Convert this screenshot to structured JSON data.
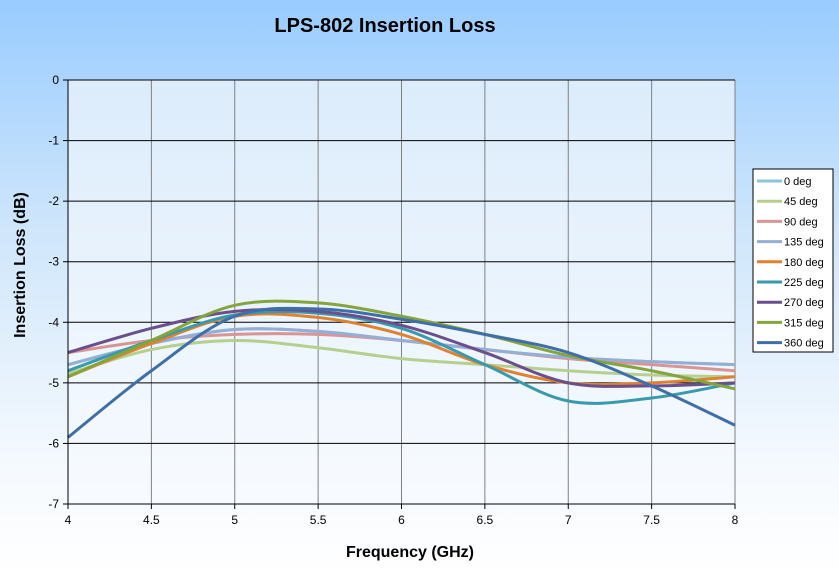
{
  "chart_data": {
    "type": "line",
    "title": "LPS-802  Insertion Loss",
    "xlabel": "Frequency  (GHz)",
    "ylabel": "Insertion Loss (dB)",
    "xlim": [
      4,
      8
    ],
    "ylim": [
      -7,
      0
    ],
    "xticks": [
      "4",
      "4.5",
      "5",
      "5.5",
      "6",
      "6.5",
      "7",
      "7.5",
      "8"
    ],
    "yticks": [
      "0",
      "-1",
      "-2",
      "-3",
      "-4",
      "-5",
      "-6",
      "-7"
    ],
    "grid": true,
    "legend_position": "right",
    "x": [
      4,
      4.5,
      5,
      5.5,
      6,
      6.5,
      7,
      7.5,
      8
    ],
    "series": [
      {
        "name": "0 deg",
        "color": "#8fc3da",
        "values": [
          -4.7,
          -4.35,
          -4.12,
          -4.15,
          -4.3,
          -4.45,
          -4.58,
          -4.65,
          -4.7
        ]
      },
      {
        "name": "45 deg",
        "color": "#b5cf8f",
        "values": [
          -4.85,
          -4.45,
          -4.3,
          -4.42,
          -4.6,
          -4.7,
          -4.8,
          -4.87,
          -4.9
        ]
      },
      {
        "name": "90 deg",
        "color": "#d99594",
        "values": [
          -4.5,
          -4.3,
          -4.2,
          -4.2,
          -4.3,
          -4.45,
          -4.6,
          -4.7,
          -4.8
        ]
      },
      {
        "name": "135 deg",
        "color": "#95aed6",
        "values": [
          -4.7,
          -4.35,
          -4.12,
          -4.15,
          -4.3,
          -4.45,
          -4.58,
          -4.65,
          -4.7
        ]
      },
      {
        "name": "180 deg",
        "color": "#e0812f",
        "values": [
          -4.9,
          -4.35,
          -3.9,
          -3.92,
          -4.2,
          -4.7,
          -5.0,
          -5.0,
          -4.9
        ]
      },
      {
        "name": "225 deg",
        "color": "#3a9aad",
        "values": [
          -4.8,
          -4.3,
          -3.88,
          -3.85,
          -4.1,
          -4.7,
          -5.3,
          -5.25,
          -5.0
        ]
      },
      {
        "name": "270 deg",
        "color": "#6b4f8c",
        "values": [
          -4.5,
          -4.1,
          -3.82,
          -3.82,
          -4.05,
          -4.5,
          -5.0,
          -5.05,
          -5.0
        ]
      },
      {
        "name": "315 deg",
        "color": "#84a43d",
        "values": [
          -4.9,
          -4.3,
          -3.72,
          -3.68,
          -3.9,
          -4.2,
          -4.55,
          -4.8,
          -5.1
        ]
      },
      {
        "name": "360 deg",
        "color": "#3f6fa8",
        "values": [
          -5.9,
          -4.8,
          -3.9,
          -3.78,
          -3.95,
          -4.2,
          -4.5,
          -5.05,
          -5.7
        ]
      }
    ]
  }
}
